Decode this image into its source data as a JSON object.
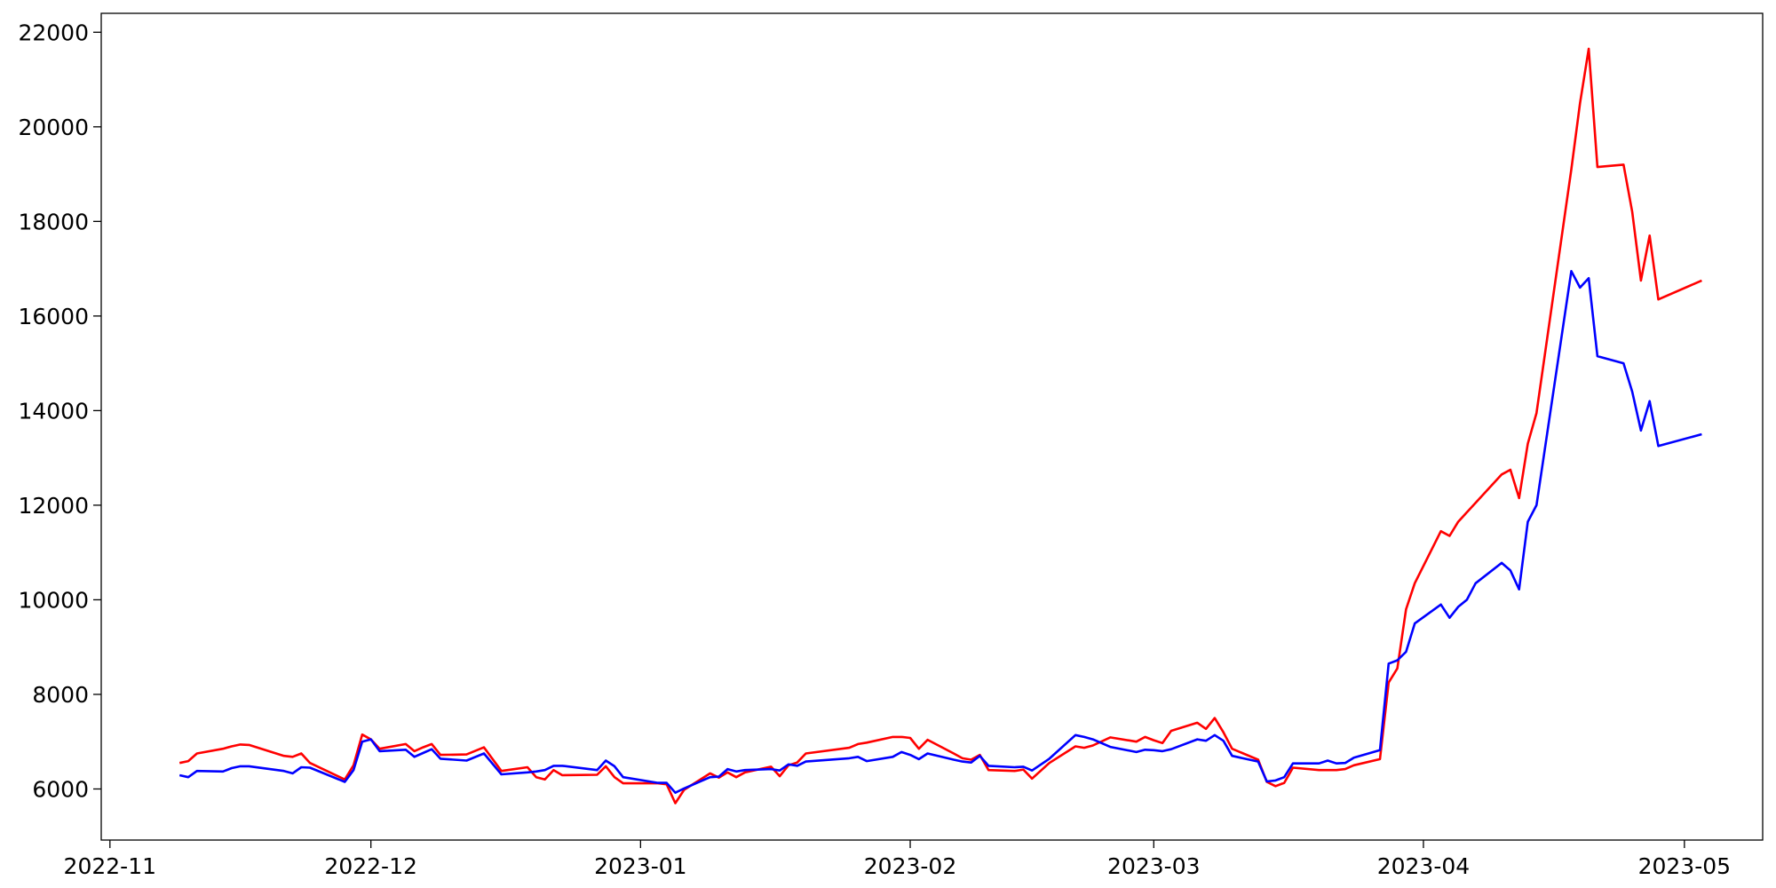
{
  "chart_data": {
    "type": "line",
    "x": [
      "2022-11-09",
      "2022-11-10",
      "2022-11-11",
      "2022-11-14",
      "2022-11-15",
      "2022-11-16",
      "2022-11-17",
      "2022-11-21",
      "2022-11-22",
      "2022-11-23",
      "2022-11-24",
      "2022-11-28",
      "2022-11-29",
      "2022-11-30",
      "2022-12-01",
      "2022-12-02",
      "2022-12-05",
      "2022-12-06",
      "2022-12-07",
      "2022-12-08",
      "2022-12-09",
      "2022-12-12",
      "2022-12-14",
      "2022-12-16",
      "2022-12-19",
      "2022-12-20",
      "2022-12-21",
      "2022-12-22",
      "2022-12-23",
      "2022-12-27",
      "2022-12-28",
      "2022-12-29",
      "2022-12-30",
      "2023-01-03",
      "2023-01-04",
      "2023-01-05",
      "2023-01-06",
      "2023-01-09",
      "2023-01-10",
      "2023-01-11",
      "2023-01-12",
      "2023-01-13",
      "2023-01-16",
      "2023-01-17",
      "2023-01-18",
      "2023-01-19",
      "2023-01-20",
      "2023-01-25",
      "2023-01-26",
      "2023-01-27",
      "2023-01-30",
      "2023-01-31",
      "2023-02-01",
      "2023-02-02",
      "2023-02-03",
      "2023-02-06",
      "2023-02-07",
      "2023-02-08",
      "2023-02-09",
      "2023-02-10",
      "2023-02-13",
      "2023-02-14",
      "2023-02-15",
      "2023-02-17",
      "2023-02-20",
      "2023-02-21",
      "2023-02-22",
      "2023-02-24",
      "2023-02-27",
      "2023-02-28",
      "2023-03-01",
      "2023-03-02",
      "2023-03-03",
      "2023-03-06",
      "2023-03-07",
      "2023-03-08",
      "2023-03-09",
      "2023-03-10",
      "2023-03-13",
      "2023-03-14",
      "2023-03-15",
      "2023-03-16",
      "2023-03-17",
      "2023-03-20",
      "2023-03-21",
      "2023-03-22",
      "2023-03-23",
      "2023-03-24",
      "2023-03-27",
      "2023-03-28",
      "2023-03-29",
      "2023-03-30",
      "2023-03-31",
      "2023-04-03",
      "2023-04-04",
      "2023-04-05",
      "2023-04-06",
      "2023-04-07",
      "2023-04-10",
      "2023-04-11",
      "2023-04-12",
      "2023-04-13",
      "2023-04-14",
      "2023-04-18",
      "2023-04-19",
      "2023-04-20",
      "2023-04-21",
      "2023-04-24",
      "2023-04-25",
      "2023-04-26",
      "2023-04-27",
      "2023-04-28",
      "2023-05-03"
    ],
    "series": [
      {
        "color": "#ff0000",
        "values": [
          6550,
          6590,
          6750,
          6850,
          6900,
          6940,
          6930,
          6700,
          6680,
          6750,
          6550,
          6200,
          6500,
          7150,
          7050,
          6850,
          6950,
          6800,
          6880,
          6950,
          6720,
          6730,
          6880,
          6380,
          6460,
          6250,
          6200,
          6400,
          6290,
          6300,
          6480,
          6250,
          6120,
          6120,
          6100,
          5700,
          5980,
          6330,
          6240,
          6350,
          6250,
          6350,
          6470,
          6270,
          6500,
          6560,
          6750,
          6870,
          6950,
          6980,
          7100,
          7100,
          7080,
          6850,
          7040,
          6750,
          6650,
          6620,
          6720,
          6400,
          6380,
          6410,
          6220,
          6550,
          6900,
          6870,
          6920,
          7090,
          7000,
          7100,
          7030,
          6970,
          7230,
          7400,
          7270,
          7500,
          7200,
          6850,
          6620,
          6150,
          6060,
          6130,
          6450,
          6400,
          6400,
          6400,
          6420,
          6500,
          6630,
          8250,
          8550,
          9800,
          10350,
          11450,
          11350,
          11650,
          11850,
          12050,
          12650,
          12750,
          12150,
          13300,
          13950,
          19100,
          20500,
          21650,
          19150,
          19200,
          18200,
          16750,
          17700,
          16350,
          16750
        ]
      },
      {
        "color": "#0000ff",
        "values": [
          6290,
          6250,
          6380,
          6370,
          6440,
          6480,
          6480,
          6380,
          6330,
          6460,
          6450,
          6150,
          6400,
          7000,
          7050,
          6800,
          6830,
          6680,
          6760,
          6840,
          6640,
          6600,
          6750,
          6310,
          6350,
          6370,
          6400,
          6490,
          6490,
          6400,
          6600,
          6480,
          6250,
          6130,
          6130,
          5920,
          6010,
          6250,
          6260,
          6420,
          6370,
          6400,
          6420,
          6390,
          6520,
          6490,
          6580,
          6650,
          6680,
          6590,
          6680,
          6780,
          6720,
          6630,
          6750,
          6620,
          6580,
          6560,
          6700,
          6490,
          6460,
          6470,
          6390,
          6640,
          7140,
          7100,
          7050,
          6890,
          6780,
          6830,
          6820,
          6800,
          6840,
          7050,
          7020,
          7140,
          7020,
          6700,
          6580,
          6160,
          6180,
          6250,
          6540,
          6540,
          6600,
          6540,
          6550,
          6660,
          6820,
          8650,
          8720,
          8900,
          9500,
          9900,
          9620,
          9850,
          10000,
          10350,
          10780,
          10620,
          10220,
          11650,
          12000,
          16950,
          16600,
          16800,
          15150,
          15000,
          14400,
          13580,
          14200,
          13250,
          13500
        ]
      }
    ],
    "xlim": [
      "2022-10-31",
      "2023-05-10"
    ],
    "xticks": [
      {
        "value": "2022-11-01",
        "label": "2022-11"
      },
      {
        "value": "2022-12-01",
        "label": "2022-12"
      },
      {
        "value": "2023-01-01",
        "label": "2023-01"
      },
      {
        "value": "2023-02-01",
        "label": "2023-02"
      },
      {
        "value": "2023-03-01",
        "label": "2023-03"
      },
      {
        "value": "2023-04-01",
        "label": "2023-04"
      },
      {
        "value": "2023-05-01",
        "label": "2023-05"
      }
    ],
    "ylim": [
      4920,
      22400
    ],
    "yticks": [
      6000,
      8000,
      10000,
      12000,
      14000,
      16000,
      18000,
      20000,
      22000
    ],
    "grid": false
  }
}
